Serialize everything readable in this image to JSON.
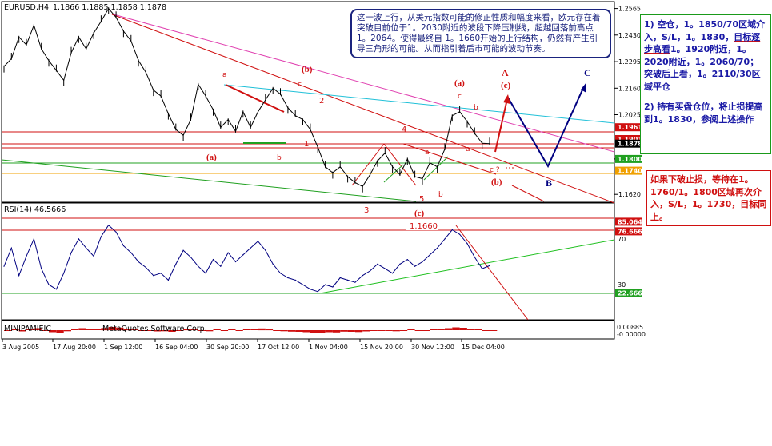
{
  "header": {
    "symbol": "EURUSD,H4",
    "ohlc": "1.1866 1.1885 1.1858 1.1878",
    "rsi_label": "RSI(14) 46.5666",
    "copyright": "MetaQuotes Software Corp.",
    "watermark": "MINIPAMIEIC"
  },
  "notes": {
    "blue": "这一波上行，从美元指数可能的修正性质和幅度来看，欧元存在着突破目前位于1。2030附近的波段下降压制线，超越回落前高点1。2064。使得最终自 1。1660开始的上行结构，仍然有产生引导三角形的可能。从而指引着后市可能的波动节奏。",
    "green_1a": "1) 空仓，1。1850/70区域介入，S/L，1。1830，",
    "green_1b": "目标逐步高看",
    "green_1c": "1。1920附近，1。2020附近，1。2060/70；突破后上看，1。2110/30区域平仓",
    "green_2": "2) 持有买盘仓位，将止损提高到1。1830，参阅上述操作",
    "red": "如果下破止损，等待在1。1760/1。1800区域再次介入，S/L，1。1730，目标同上。"
  },
  "labels": {
    "wave_a_left": "(a)",
    "wave_b_top": "(b)",
    "wave_c_bottom": "(c)",
    "wave_a_right": "(a)",
    "wave_c_right": "(c)",
    "wave_b_right": "(b)",
    "A": "A",
    "B": "B",
    "C": "C",
    "n1": "1",
    "n2": "2",
    "n3": "3",
    "n4": "4",
    "n5": "5",
    "sa": "a",
    "sb": "b",
    "sc": "c",
    "cq": "c ?",
    "low_1660": "1.1660"
  },
  "colors": {
    "candle": "#000000",
    "rsi": "#000080",
    "red": "#d01010",
    "magenta": "#e040b0",
    "cyan": "#20c0d8",
    "green": "#20a020",
    "navy": "#000080",
    "orange": "#f0a000"
  },
  "chart_data": [
    {
      "type": "line",
      "title": "EURUSD,H4",
      "y_axis_ticks": [
        "1.2565",
        "1.2430",
        "1.2295",
        "1.2160",
        "1.2025",
        "1.1800",
        "1.1620"
      ],
      "price_tags": [
        {
          "value": "1.1961",
          "color": "#d01010"
        },
        {
          "value": "1.1901",
          "color": "#d01010"
        },
        {
          "value": "1.1878",
          "color": "#000000"
        },
        {
          "value": "1.1800",
          "color": "#20a020"
        },
        {
          "value": "1.1740",
          "color": "#f0a000"
        }
      ],
      "x_axis_ticks": [
        "3 Aug 2005",
        "17 Aug 20:00",
        "1 Sep 12:00",
        "16 Sep 04:00",
        "30 Sep 20:00",
        "17 Oct 12:00",
        "1 Nov 04:00",
        "15 Nov 20:00",
        "30 Nov 12:00",
        "15 Dec 04:00"
      ],
      "ylim": [
        1.158,
        1.26
      ],
      "series": [
        {
          "values": [
            1.227,
            1.231,
            1.242,
            1.238,
            1.248,
            1.236,
            1.23,
            1.225,
            1.22,
            1.234,
            1.242,
            1.236,
            1.244,
            1.25,
            1.2565,
            1.252,
            1.245,
            1.24,
            1.23,
            1.224,
            1.215,
            1.212,
            1.203,
            1.195,
            1.192,
            1.2,
            1.218,
            1.212,
            1.205,
            1.196,
            1.2,
            1.194,
            1.204,
            1.196,
            1.204,
            1.21,
            1.216,
            1.213,
            1.206,
            1.202,
            1.2,
            1.195,
            1.186,
            1.176,
            1.173,
            1.176,
            1.171,
            1.168,
            1.166,
            1.172,
            1.179,
            1.183,
            1.176,
            1.172,
            1.18,
            1.171,
            1.17,
            1.178,
            1.176,
            1.185,
            1.202,
            1.204,
            1.199,
            1.193,
            1.188,
            1.1878
          ]
        }
      ]
    },
    {
      "type": "line",
      "title": "RSI(14) 46.5666",
      "y_axis_ticks": [
        "85.0648",
        "76.6667",
        "70",
        "30",
        "22.6667"
      ],
      "ylim": [
        0,
        100
      ],
      "series": [
        {
          "values": [
            46,
            62,
            38,
            55,
            70,
            44,
            30,
            26,
            40,
            58,
            70,
            62,
            55,
            72,
            82,
            76,
            64,
            58,
            50,
            45,
            38,
            40,
            34,
            48,
            60,
            54,
            46,
            40,
            52,
            46,
            58,
            50,
            56,
            62,
            68,
            60,
            48,
            40,
            36,
            34,
            30,
            26,
            24,
            30,
            28,
            36,
            34,
            32,
            38,
            42,
            48,
            44,
            40,
            48,
            52,
            46,
            50,
            56,
            62,
            70,
            78,
            74,
            66,
            54,
            44,
            46.5666
          ]
        }
      ]
    }
  ]
}
